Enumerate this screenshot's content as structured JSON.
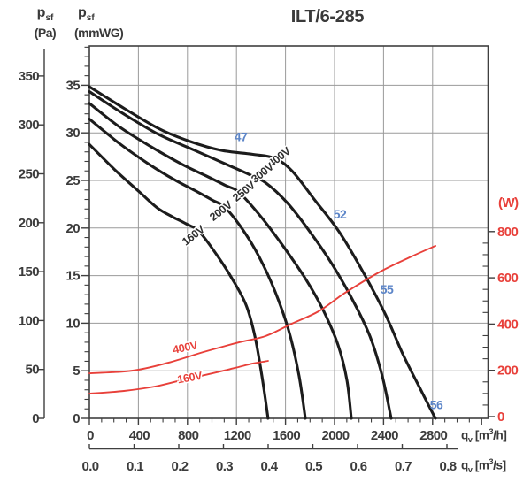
{
  "title": "ILT/6-285",
  "axes": {
    "pa": {
      "name": "p",
      "sub": "sf",
      "unit": "(Pa)",
      "ticks": [
        0,
        50,
        100,
        150,
        200,
        250,
        300,
        350
      ]
    },
    "mmwg": {
      "name": "p",
      "sub": "sf",
      "unit": "(mmWG)",
      "ticks": [
        0,
        5,
        10,
        15,
        20,
        25,
        30,
        35
      ]
    },
    "watt": {
      "unit": "(W)",
      "ticks": [
        0,
        200,
        400,
        600,
        800
      ],
      "color": "#e8403a"
    },
    "m3h": {
      "prefix": "q",
      "sub": "v",
      "unit_open": "[m",
      "unit_sup": "3",
      "unit_close": "/h]",
      "ticks": [
        0,
        400,
        800,
        1200,
        1600,
        2000,
        2400,
        2800
      ]
    },
    "m3s": {
      "prefix": "q",
      "sub": "v",
      "unit_open": "[m",
      "unit_sup": "3",
      "unit_close": "/s]",
      "ticks": [
        "0.0",
        "0.1",
        "0.2",
        "0.3",
        "0.4",
        "0.5",
        "0.6",
        "0.7",
        "0.8"
      ]
    }
  },
  "chart_data": {
    "type": "line",
    "title": "ILT/6-285",
    "x_axis": {
      "label": "qv [m3/h]",
      "range": [
        0,
        3250
      ],
      "major_step": 400,
      "minor_step": 100
    },
    "x_axis_secondary": {
      "label": "qv [m3/s]",
      "range": [
        0,
        0.8
      ],
      "major_step": 0.1
    },
    "y_axis_left_pa": {
      "label": "psf (Pa)",
      "range": [
        0,
        380
      ],
      "major_step": 50
    },
    "y_axis_left_mmwg": {
      "label": "psf (mmWG)",
      "range": [
        0,
        39
      ],
      "major_step": 5,
      "minor_step": 1,
      "grid": true
    },
    "y_axis_right": {
      "label": "(W)",
      "range": [
        0,
        800
      ],
      "major_step": 200,
      "minor_step": 50,
      "color": "#e8403a"
    },
    "legend": "none",
    "series": [
      {
        "name": "400V",
        "kind": "pressure",
        "y_axis": "pa",
        "color": "#1c1c1c",
        "points": [
          [
            0,
            339
          ],
          [
            282,
            317
          ],
          [
            570,
            296
          ],
          [
            823,
            283
          ],
          [
            1076,
            274
          ],
          [
            1329,
            270
          ],
          [
            1509,
            266
          ],
          [
            1653,
            253
          ],
          [
            1834,
            224
          ],
          [
            2036,
            191
          ],
          [
            2231,
            150
          ],
          [
            2412,
            107
          ],
          [
            2556,
            66
          ],
          [
            2700,
            30
          ],
          [
            2823,
            0
          ]
        ],
        "label": {
          "text": "400V",
          "q": 1567,
          "value": 264,
          "rotation": -38
        }
      },
      {
        "name": "300V",
        "kind": "pressure",
        "y_axis": "pa",
        "color": "#1c1c1c",
        "points": [
          [
            0,
            334
          ],
          [
            282,
            311
          ],
          [
            570,
            290
          ],
          [
            859,
            274
          ],
          [
            1112,
            260
          ],
          [
            1292,
            250
          ],
          [
            1437,
            241
          ],
          [
            1617,
            220
          ],
          [
            1798,
            191
          ],
          [
            1978,
            158
          ],
          [
            2144,
            122
          ],
          [
            2289,
            84
          ],
          [
            2390,
            43
          ],
          [
            2462,
            0
          ]
        ],
        "label": {
          "text": "300V",
          "q": 1430,
          "value": 248,
          "rotation": -38
        }
      },
      {
        "name": "250V",
        "kind": "pressure",
        "y_axis": "pa",
        "color": "#1c1c1c",
        "points": [
          [
            0,
            322
          ],
          [
            245,
            298
          ],
          [
            498,
            278
          ],
          [
            751,
            260
          ],
          [
            967,
            247
          ],
          [
            1112,
            238
          ],
          [
            1220,
            231
          ],
          [
            1401,
            206
          ],
          [
            1581,
            176
          ],
          [
            1762,
            143
          ],
          [
            1906,
            111
          ],
          [
            2029,
            75
          ],
          [
            2101,
            39
          ],
          [
            2137,
            0
          ]
        ],
        "label": {
          "text": "250V",
          "q": 1278,
          "value": 229,
          "rotation": -38
        }
      },
      {
        "name": "200V",
        "kind": "pressure",
        "y_axis": "pa",
        "color": "#1c1c1c",
        "points": [
          [
            0,
            306
          ],
          [
            245,
            281
          ],
          [
            484,
            260
          ],
          [
            693,
            244
          ],
          [
            859,
            233
          ],
          [
            1004,
            223
          ],
          [
            1112,
            215
          ],
          [
            1278,
            188
          ],
          [
            1422,
            156
          ],
          [
            1545,
            120
          ],
          [
            1639,
            84
          ],
          [
            1711,
            43
          ],
          [
            1762,
            0
          ]
        ],
        "label": {
          "text": "200V",
          "q": 1090,
          "value": 209,
          "rotation": -38
        }
      },
      {
        "name": "160V",
        "kind": "pressure",
        "y_axis": "pa",
        "color": "#1c1c1c",
        "points": [
          [
            0,
            280
          ],
          [
            209,
            254
          ],
          [
            412,
            231
          ],
          [
            556,
            215
          ],
          [
            679,
            206
          ],
          [
            787,
            199
          ],
          [
            895,
            191
          ],
          [
            1040,
            167
          ],
          [
            1163,
            143
          ],
          [
            1278,
            116
          ],
          [
            1350,
            84
          ],
          [
            1408,
            43
          ],
          [
            1458,
            0
          ]
        ],
        "label": {
          "text": "160V",
          "q": 866,
          "value": 184,
          "rotation": -38
        }
      },
      {
        "name": "400V power",
        "kind": "power",
        "y_axis": "watt",
        "color": "#e8403a",
        "points": [
          [
            0,
            187
          ],
          [
            354,
            199
          ],
          [
            643,
            233
          ],
          [
            931,
            279
          ],
          [
            1220,
            321
          ],
          [
            1437,
            348
          ],
          [
            1653,
            402
          ],
          [
            1870,
            455
          ],
          [
            2086,
            535
          ],
          [
            2375,
            627
          ],
          [
            2628,
            692
          ],
          [
            2823,
            738
          ]
        ],
        "label": {
          "text": "400V",
          "q": 787,
          "value": 283,
          "rotation": -12
        }
      },
      {
        "name": "160V power",
        "kind": "power",
        "y_axis": "watt",
        "color": "#e8403a",
        "points": [
          [
            0,
            99
          ],
          [
            282,
            111
          ],
          [
            534,
            130
          ],
          [
            751,
            157
          ],
          [
            1004,
            187
          ],
          [
            1184,
            210
          ],
          [
            1329,
            229
          ],
          [
            1415,
            237
          ],
          [
            1458,
            241
          ]
        ],
        "label": {
          "text": "160V",
          "q": 823,
          "value": 153,
          "rotation": -10
        }
      }
    ],
    "annotations": [
      {
        "text": "47",
        "q": 1235,
        "value": 288,
        "axis": "pa",
        "color": "#5c85c8"
      },
      {
        "text": "52",
        "q": 2043,
        "value": 209,
        "axis": "pa",
        "color": "#5c85c8"
      },
      {
        "text": "55",
        "q": 2426,
        "value": 132,
        "axis": "pa",
        "color": "#5c85c8"
      },
      {
        "text": "56",
        "q": 2830,
        "value": 14,
        "axis": "pa",
        "color": "#5c85c8"
      }
    ],
    "colors": {
      "pressure_curve": "#1c1c1c",
      "power_curve": "#e8403a",
      "sound_label": "#5c85c8",
      "grid": "#9a9a9a",
      "frame": "#3f3f3f"
    }
  }
}
